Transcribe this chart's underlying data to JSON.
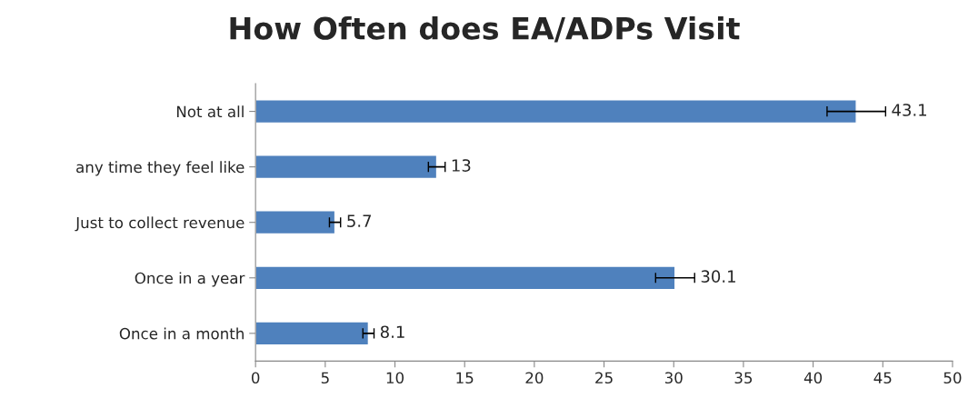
{
  "chart_data": {
    "type": "bar",
    "orientation": "horizontal",
    "title": "How Often does EA/ADPs Visit",
    "categories": [
      "Not at all",
      "any time they feel like",
      "Just to collect revenue",
      "Once in a year",
      "Once in a month"
    ],
    "values": [
      43.1,
      13,
      5.7,
      30.1,
      8.1
    ],
    "errors": [
      2.1,
      0.6,
      0.4,
      1.4,
      0.4
    ],
    "color": "#4f81bd",
    "xlim": [
      0,
      50
    ],
    "xticks": [
      0,
      5,
      10,
      15,
      20,
      25,
      30,
      35,
      40,
      45,
      50
    ],
    "data_labels": true,
    "grid": false,
    "legend": false
  }
}
